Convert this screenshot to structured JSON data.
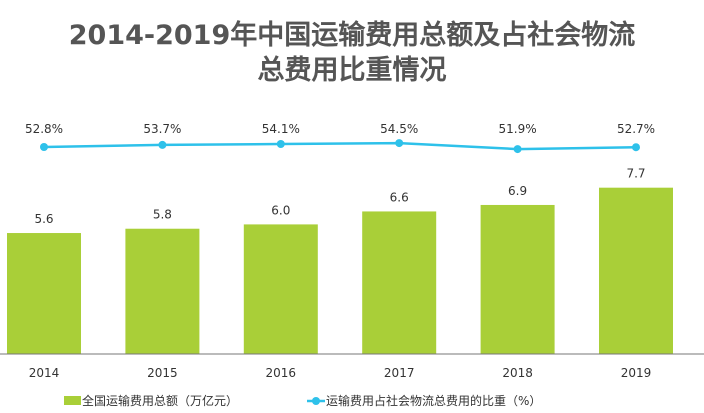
{
  "chart_data": {
    "type": "bar+line",
    "title_line1": "2014-2019年中国运输费用总额及占社会物流",
    "title_line2": "总费用比重情况",
    "categories": [
      "2014",
      "2015",
      "2016",
      "2017",
      "2018",
      "2019"
    ],
    "series": [
      {
        "name": "全国运输费用总额（万亿元）",
        "type": "bar",
        "values": [
          5.6,
          5.8,
          6.0,
          6.6,
          6.9,
          7.7
        ],
        "labels": [
          "5.6",
          "5.8",
          "6.0",
          "6.6",
          "6.9",
          "7.7"
        ],
        "color": "#a9cf38"
      },
      {
        "name": "运输费用占社会物流总费用的比重（%）",
        "type": "line",
        "values": [
          52.8,
          53.7,
          54.1,
          54.5,
          51.9,
          52.7
        ],
        "labels": [
          "52.8%",
          "53.7%",
          "54.1%",
          "54.5%",
          "51.9%",
          "52.7%"
        ],
        "color": "#2ec1ea"
      }
    ],
    "grid": false,
    "legend_placement": "bottom"
  }
}
